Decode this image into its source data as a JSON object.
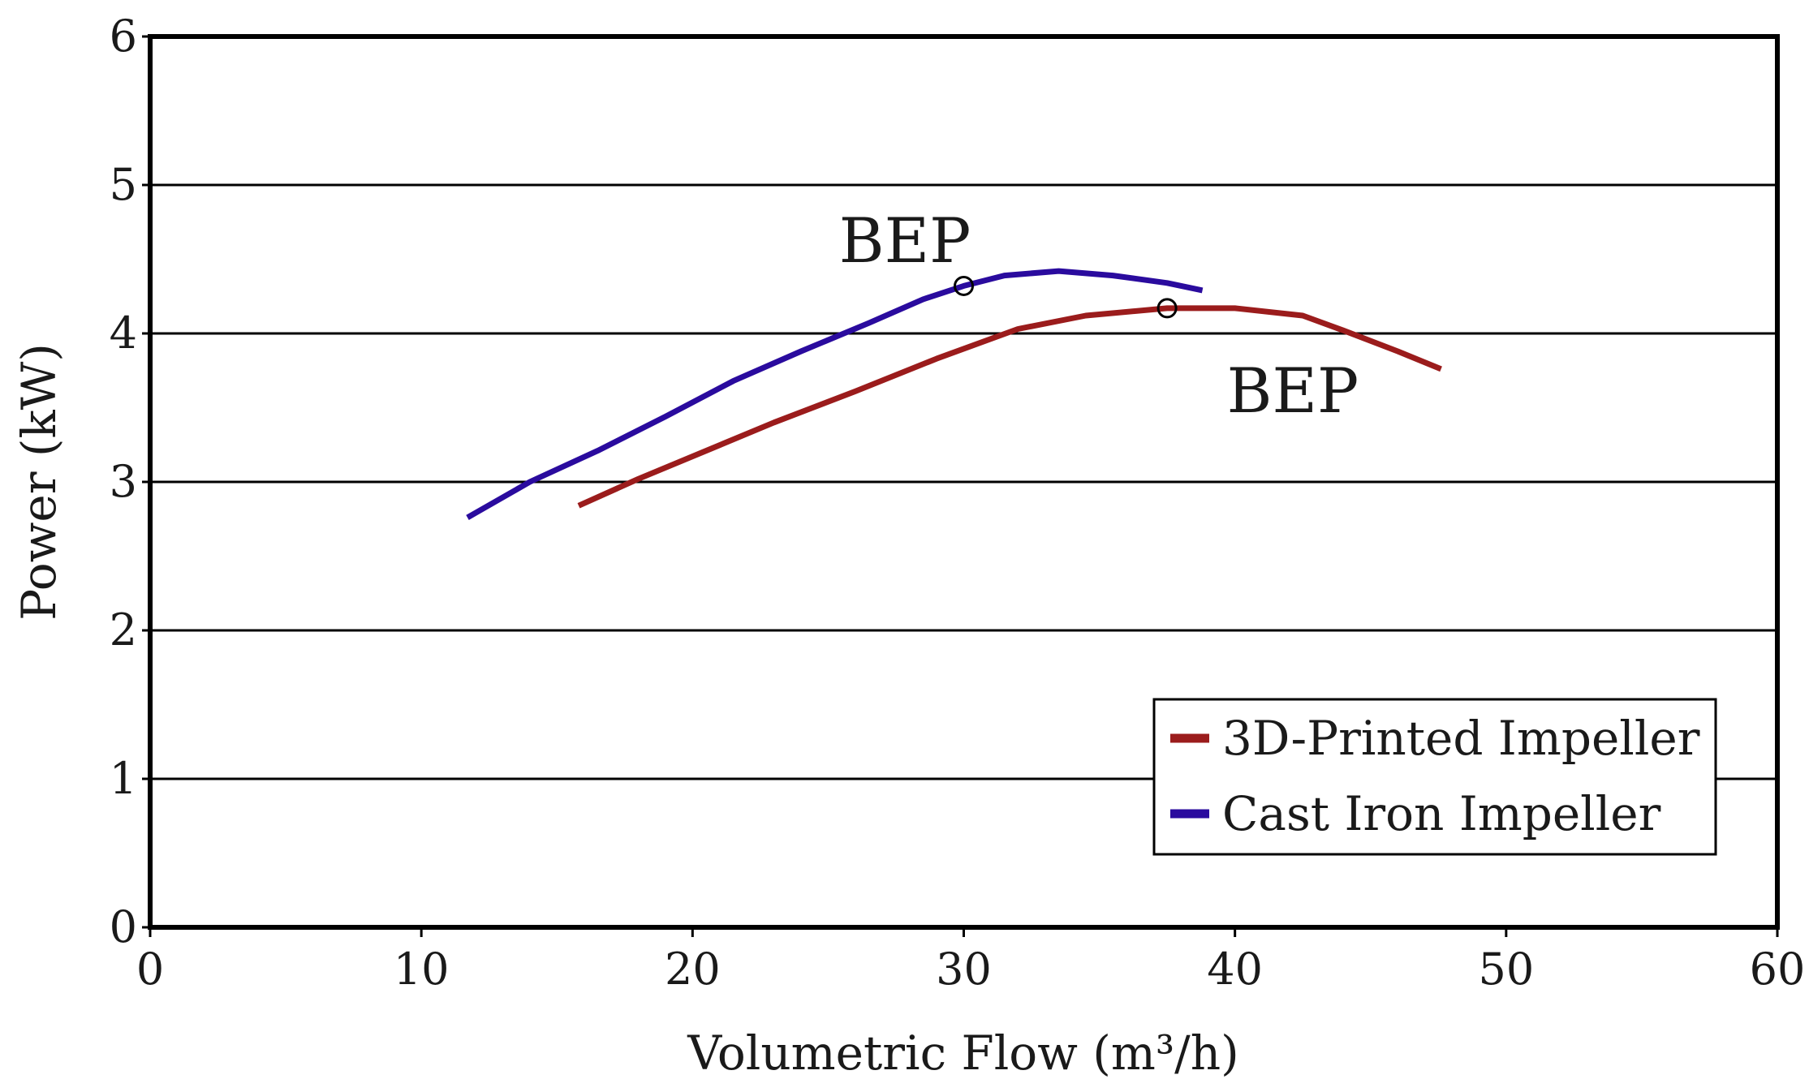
{
  "chart_data": {
    "type": "line",
    "xlabel": "Volumetric Flow (m³/h)",
    "ylabel": "Power (kW)",
    "xlim": [
      0,
      60
    ],
    "ylim": [
      0,
      6
    ],
    "xticks": [
      "0",
      "10",
      "20",
      "30",
      "40",
      "50",
      "60"
    ],
    "yticks": [
      "0",
      "1",
      "2",
      "3",
      "4",
      "5",
      "6"
    ],
    "grid": "horizontal",
    "legend_position": "bottom-right",
    "series": [
      {
        "name": "3D-Printed Impeller",
        "color": "#9b1c1c",
        "points": [
          [
            15.8,
            2.84
          ],
          [
            18.0,
            3.02
          ],
          [
            20.5,
            3.21
          ],
          [
            23.0,
            3.4
          ],
          [
            26.0,
            3.61
          ],
          [
            29.0,
            3.83
          ],
          [
            32.0,
            4.03
          ],
          [
            34.5,
            4.12
          ],
          [
            37.5,
            4.17
          ],
          [
            40.0,
            4.17
          ],
          [
            42.5,
            4.12
          ],
          [
            44.0,
            4.02
          ],
          [
            46.0,
            3.88
          ],
          [
            47.6,
            3.76
          ]
        ],
        "bep": [
          37.5,
          4.17
        ]
      },
      {
        "name": "Cast Iron Impeller",
        "color": "#2a0b9e",
        "points": [
          [
            11.7,
            2.76
          ],
          [
            14.0,
            3.0
          ],
          [
            16.5,
            3.21
          ],
          [
            19.0,
            3.44
          ],
          [
            21.5,
            3.68
          ],
          [
            24.0,
            3.88
          ],
          [
            26.5,
            4.07
          ],
          [
            28.5,
            4.23
          ],
          [
            30.0,
            4.32
          ],
          [
            31.5,
            4.39
          ],
          [
            33.5,
            4.42
          ],
          [
            35.5,
            4.39
          ],
          [
            37.5,
            4.34
          ],
          [
            38.8,
            4.29
          ]
        ],
        "bep": [
          30.0,
          4.32
        ]
      }
    ],
    "annotations": [
      {
        "text": "BEP",
        "x": 25.4,
        "y": 4.48
      },
      {
        "text": "BEP",
        "x": 39.7,
        "y": 3.47
      }
    ]
  }
}
